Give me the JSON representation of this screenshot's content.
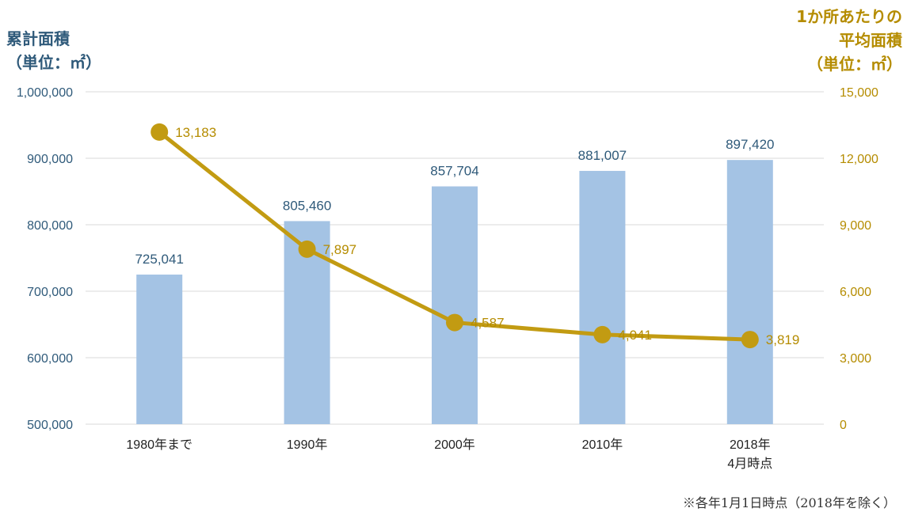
{
  "chart_data": {
    "type": "bar",
    "categories": [
      "1980年まで",
      "1990年",
      "2000年",
      "2010年",
      "2018年\n4月時点"
    ],
    "series": [
      {
        "name": "",
        "type": "bar",
        "axis": "left",
        "values": [
          725041,
          805460,
          857704,
          881007,
          897420
        ],
        "labels": [
          "725,041",
          "805,460",
          "857,704",
          "881,007",
          "897,420"
        ],
        "color": "#a4c3e4"
      },
      {
        "name": "",
        "type": "line",
        "axis": "right",
        "values": [
          13183,
          7897,
          4587,
          4041,
          3819
        ],
        "labels": [
          "13,183",
          "7,897",
          "4,587",
          "4,041",
          "3,819"
        ],
        "color": "#c29b12"
      }
    ],
    "ylabel": "累計面積\n（単位：㎡）",
    "y2label": "1か所あたりの\n平均面積\n（単位：㎡）",
    "ylim": [
      500000,
      1000000
    ],
    "y2lim": [
      0,
      15000
    ],
    "yticks": [
      "500,000",
      "600,000",
      "700,000",
      "800,000",
      "900,000",
      "1,000,000"
    ],
    "y2ticks": [
      "0",
      "3,000",
      "6,000",
      "9,000",
      "12,000",
      "15,000"
    ],
    "grid": true,
    "colors": {
      "left_axis": "#2f5a7a",
      "right_axis": "#b58c00",
      "gridline": "#d9d9d9",
      "axis_text": "#1f1f1f"
    }
  },
  "footnote": "※各年1月1日時点（2018年を除く）"
}
